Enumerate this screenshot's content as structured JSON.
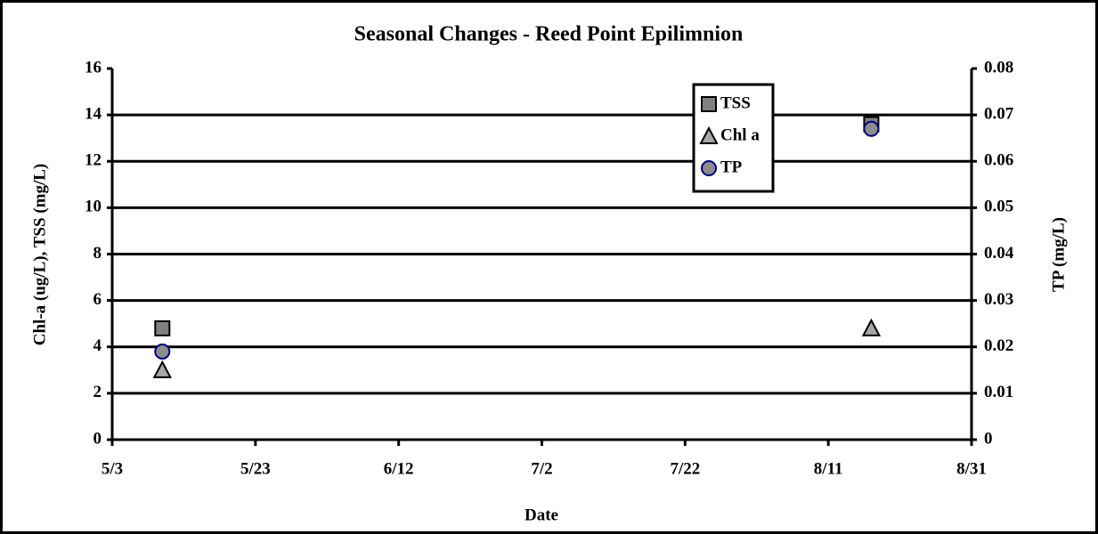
{
  "chart_data": {
    "type": "scatter",
    "title": "Seasonal Changes - Reed Point Epilimnion",
    "xlabel": "Date",
    "ylabel": "Chl-a (ug/L), TSS (mg/L)",
    "y2label": "TP (mg/L)",
    "x": [
      130,
      229
    ],
    "xlim": [
      123,
      243
    ],
    "xticks": [
      {
        "value": 123,
        "label": "5/3"
      },
      {
        "value": 143,
        "label": "5/23"
      },
      {
        "value": 163,
        "label": "6/12"
      },
      {
        "value": 183,
        "label": "7/2"
      },
      {
        "value": 203,
        "label": "7/22"
      },
      {
        "value": 223,
        "label": "8/11"
      },
      {
        "value": 243,
        "label": "8/31"
      }
    ],
    "ylim": [
      0,
      16
    ],
    "yticks": [
      0,
      2,
      4,
      6,
      8,
      10,
      12,
      14,
      16
    ],
    "y2lim": [
      0,
      0.08
    ],
    "y2ticks": [
      0,
      0.01,
      0.02,
      0.03,
      0.04,
      0.05,
      0.06,
      0.07,
      0.08
    ],
    "grid": true,
    "legend": "upper right",
    "series": [
      {
        "name": "TSS",
        "marker": "square",
        "color": "#808080",
        "edgecolor": "#000000",
        "values": [
          4.8,
          13.6
        ]
      },
      {
        "name": "Chl a",
        "marker": "triangle",
        "color": "#a6a6a6",
        "edgecolor": "#000000",
        "values": [
          3.0,
          4.8
        ]
      },
      {
        "name": "TP",
        "marker": "circle",
        "color": "#8c8c8c",
        "edgecolor": "#000080",
        "axis": "y2",
        "values": [
          0.019,
          0.067
        ]
      }
    ]
  }
}
